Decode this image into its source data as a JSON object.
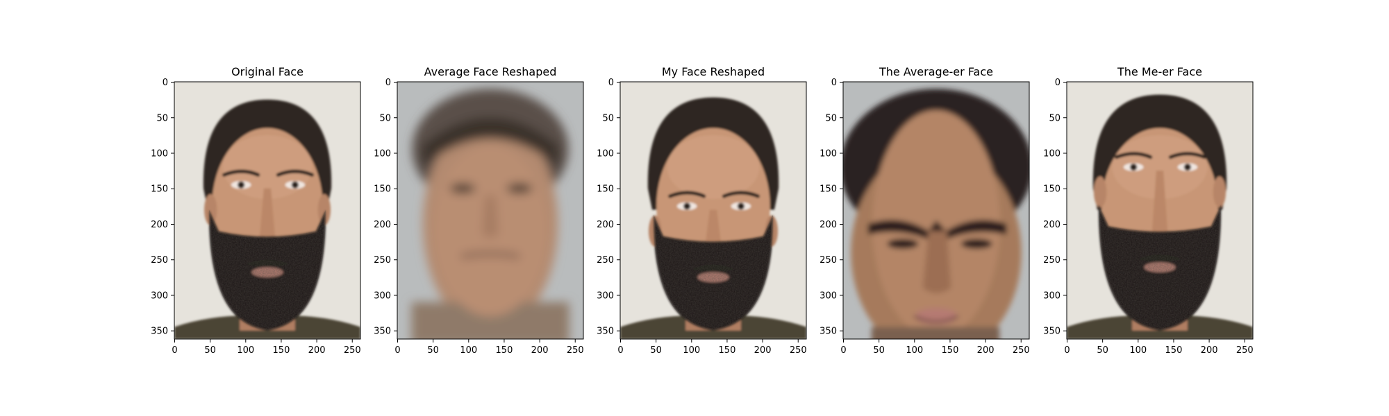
{
  "figure": {
    "background": "#ffffff",
    "panels": [
      {
        "title": "Original Face",
        "variant": "original",
        "xticks": [
          "0",
          "50",
          "100",
          "150",
          "200",
          "250"
        ],
        "yticks": [
          "0",
          "50",
          "100",
          "150",
          "200",
          "250",
          "300",
          "350"
        ]
      },
      {
        "title": "Average Face Reshaped",
        "variant": "average",
        "xticks": [
          "0",
          "50",
          "100",
          "150",
          "200",
          "250"
        ],
        "yticks": [
          "0",
          "50",
          "100",
          "150",
          "200",
          "250",
          "300",
          "350"
        ]
      },
      {
        "title": "My Face Reshaped",
        "variant": "reshaped",
        "xticks": [
          "0",
          "50",
          "100",
          "150",
          "200",
          "250"
        ],
        "yticks": [
          "0",
          "50",
          "100",
          "150",
          "200",
          "250",
          "300",
          "350"
        ]
      },
      {
        "title": "The Average-er Face",
        "variant": "average-er",
        "xticks": [
          "0",
          "50",
          "100",
          "150",
          "200",
          "250"
        ],
        "yticks": [
          "0",
          "50",
          "100",
          "150",
          "200",
          "250",
          "300",
          "350"
        ]
      },
      {
        "title": "The Me-er Face",
        "variant": "me-er",
        "xticks": [
          "0",
          "50",
          "100",
          "150",
          "200",
          "250"
        ],
        "yticks": [
          "0",
          "50",
          "100",
          "150",
          "200",
          "250",
          "300",
          "350"
        ]
      }
    ],
    "colors": {
      "wall": "#e6e3dc",
      "wall_gray": "#b9bcbd",
      "skin": "#c89676",
      "skin_blur": "#b98e72",
      "hair": "#2e2520",
      "beard": "#1c1917",
      "shirt": "#4c4434",
      "lip": "#b47c6f",
      "eye": "#2a201c",
      "axis": "#000000"
    }
  }
}
